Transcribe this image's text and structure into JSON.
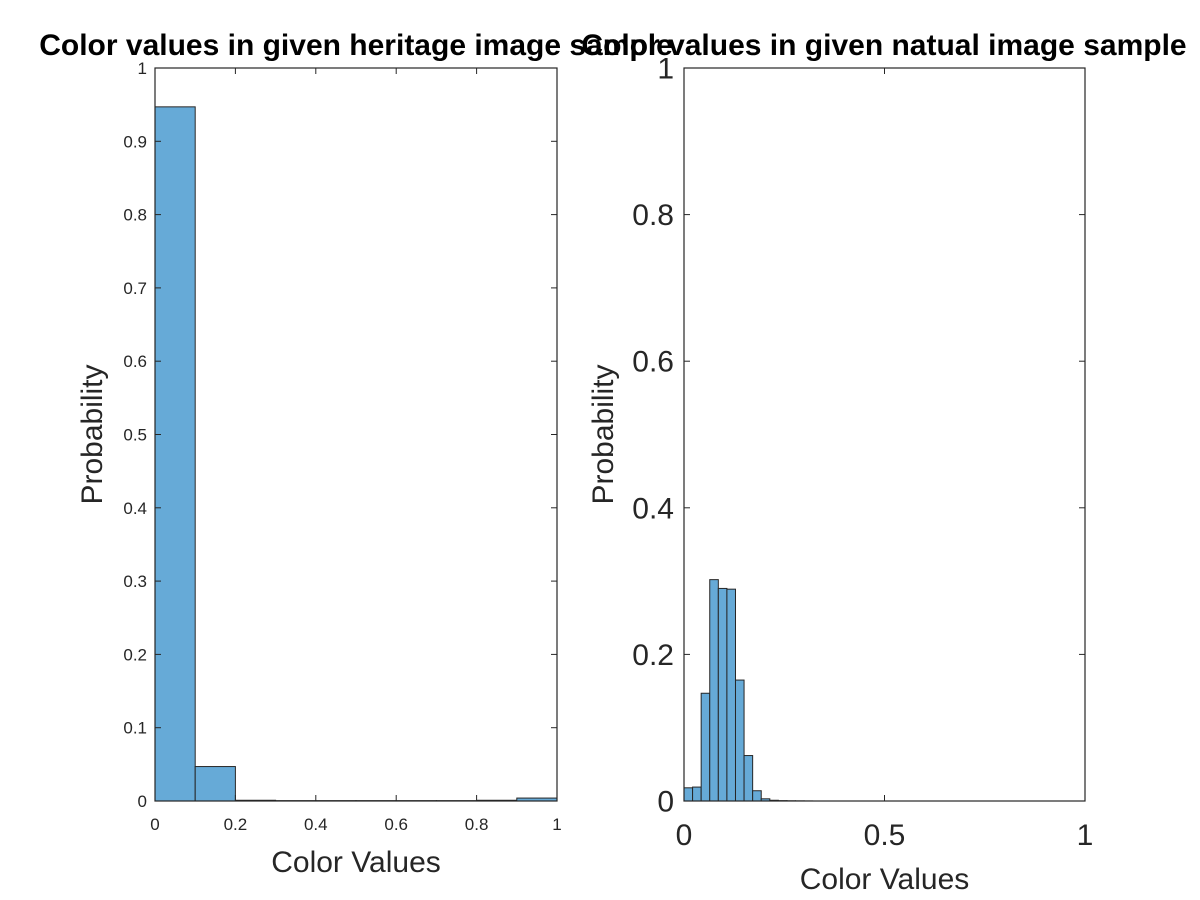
{
  "chart_data": [
    {
      "type": "bar",
      "subtype": "histogram",
      "title": "Color values in given heritage image sample",
      "xlabel": "Color Values",
      "ylabel": "Probability",
      "xlim": [
        0,
        1
      ],
      "ylim": [
        0,
        1
      ],
      "xticks": [
        "0",
        "0.2",
        "0.4",
        "0.6",
        "0.8",
        "1"
      ],
      "yticks": [
        "0",
        "0.1",
        "0.2",
        "0.3",
        "0.4",
        "0.5",
        "0.6",
        "0.7",
        "0.8",
        "0.9",
        "1"
      ],
      "bin_edges": [
        0,
        0.1,
        0.2,
        0.3,
        0.4,
        0.5,
        0.6,
        0.7,
        0.8,
        0.9,
        1.0
      ],
      "values": [
        0.947,
        0.047,
        0.001,
        0.0005,
        0.0005,
        0.0005,
        0.0005,
        0.0005,
        0.001,
        0.004
      ],
      "bar_color": "#66aad7",
      "grid": false
    },
    {
      "type": "bar",
      "subtype": "histogram",
      "title": "Color values in given natual image sample",
      "xlabel": "Color Values",
      "ylabel": "Probability",
      "xlim": [
        0,
        1
      ],
      "ylim": [
        0,
        1
      ],
      "xticks": [
        "0",
        "0.5",
        "1"
      ],
      "yticks": [
        "0",
        "0.2",
        "0.4",
        "0.6",
        "0.8",
        "1"
      ],
      "bin_edges": [
        0.0,
        0.0214,
        0.0428,
        0.0642,
        0.0856,
        0.107,
        0.1284,
        0.1498,
        0.1712,
        0.1926,
        0.214,
        0.2354,
        0.2568,
        0.2782,
        0.2996,
        0.321
      ],
      "values": [
        0.018,
        0.019,
        0.147,
        0.302,
        0.29,
        0.289,
        0.165,
        0.062,
        0.014,
        0.003,
        0.001,
        0.0005,
        0.0003,
        0.0002,
        0.0001
      ],
      "bar_color": "#66aad7",
      "grid": false
    }
  ]
}
